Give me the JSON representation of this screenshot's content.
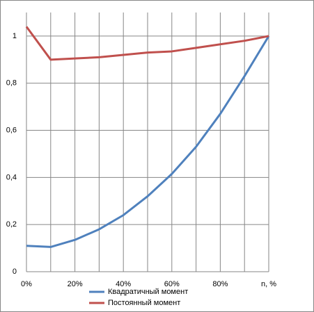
{
  "chart_data": {
    "type": "line",
    "categories": [
      "0%",
      null,
      "20%",
      null,
      "40%",
      null,
      "60%",
      null,
      "80%",
      null,
      "n, %"
    ],
    "series": [
      {
        "name": "Квадратичный момент",
        "color": "#4f81bd",
        "values": [
          0.11,
          0.105,
          0.135,
          0.18,
          0.24,
          0.32,
          0.415,
          0.53,
          0.67,
          0.83,
          1.0
        ]
      },
      {
        "name": "Постоянный момент",
        "color": "#c0504d",
        "values": [
          1.04,
          0.9,
          0.905,
          0.91,
          0.92,
          0.93,
          0.935,
          0.95,
          0.965,
          0.98,
          1.0
        ]
      }
    ],
    "ylim": [
      0,
      1.1
    ],
    "yticks": [
      0,
      {
        "value": 0.2,
        "label": "0,2"
      },
      {
        "value": 0.4,
        "label": "0,4"
      },
      {
        "value": 0.6,
        "label": "0,6"
      },
      {
        "value": 0.8,
        "label": "0,8"
      },
      1
    ],
    "grid": true,
    "legend": "bottom"
  }
}
